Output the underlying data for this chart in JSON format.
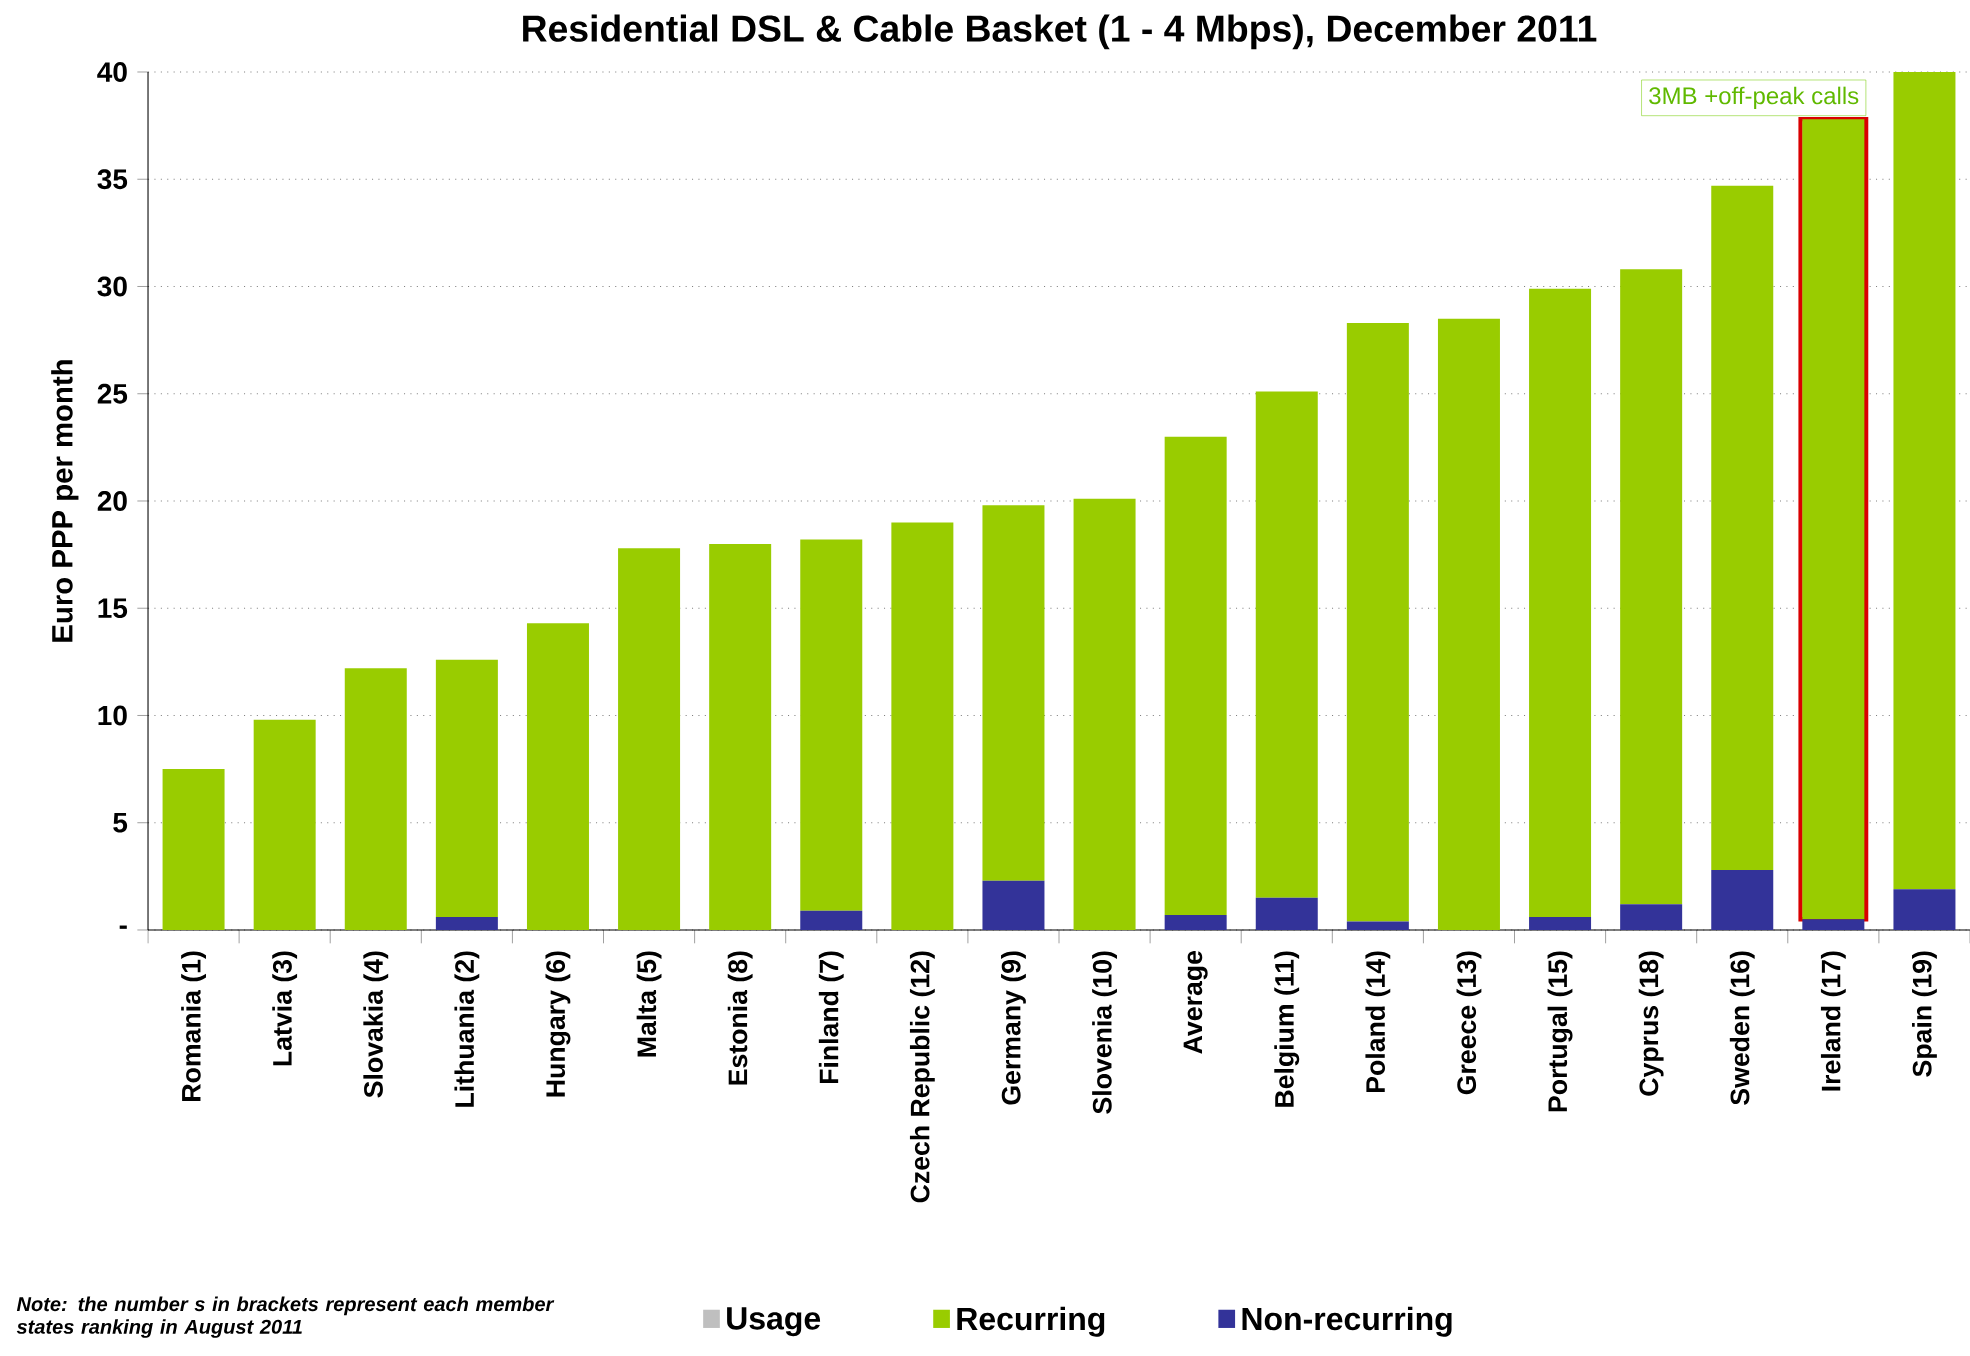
{
  "chart_data": {
    "type": "bar",
    "stacked": true,
    "title": "Residential DSL & Cable Basket (1 - 4 Mbps), December 2011",
    "ylabel": "Euro  PPP per month",
    "categories": [
      "Romania (1)",
      "Latvia (3)",
      "Slovakia (4)",
      "Lithuania (2)",
      "Hungary (6)",
      "Malta (5)",
      "Estonia (8)",
      "Finland (7)",
      "Czech Republic (12)",
      "Germany (9)",
      "Slovenia (10)",
      "Average",
      "Belgium (11)",
      "Poland (14)",
      "Greece (13)",
      "Portugal (15)",
      "Cyprus (18)",
      "Sweden (16)",
      "Ireland (17)",
      "Spain (19)"
    ],
    "series": [
      {
        "name": "Non-recurring",
        "color": "#333399",
        "values": [
          0,
          0,
          0,
          0.6,
          0,
          0,
          0,
          0.9,
          0,
          2.3,
          0,
          0.7,
          1.5,
          0.4,
          0,
          0.6,
          1.2,
          2.8,
          0.5,
          1.9
        ]
      },
      {
        "name": "Recurring",
        "color": "#99cc00",
        "values": [
          7.5,
          9.8,
          12.2,
          12.0,
          14.3,
          17.8,
          18.0,
          17.3,
          19.0,
          17.5,
          20.1,
          22.3,
          23.6,
          27.9,
          28.5,
          29.3,
          29.6,
          31.9,
          37.3,
          38.1
        ]
      },
      {
        "name": "Usage",
        "color": "#bfbfbf",
        "values": [
          0,
          0,
          0,
          0,
          0,
          0,
          0,
          0,
          0,
          0,
          0,
          0,
          0,
          0,
          0,
          0,
          0,
          0,
          0,
          0
        ]
      }
    ],
    "ylim": [
      0,
      40
    ],
    "yticks": [
      {
        "value": 0,
        "label": "-"
      },
      5,
      10,
      15,
      20,
      25,
      30,
      35,
      40
    ],
    "grid": "y",
    "legend": "bottom",
    "annotations": [
      {
        "text": "3MB +off-peak calls",
        "x": "Ireland (17)",
        "y": 37.8
      },
      "Note: the number s in brackets represent each member states ranking in August 2011"
    ]
  }
}
